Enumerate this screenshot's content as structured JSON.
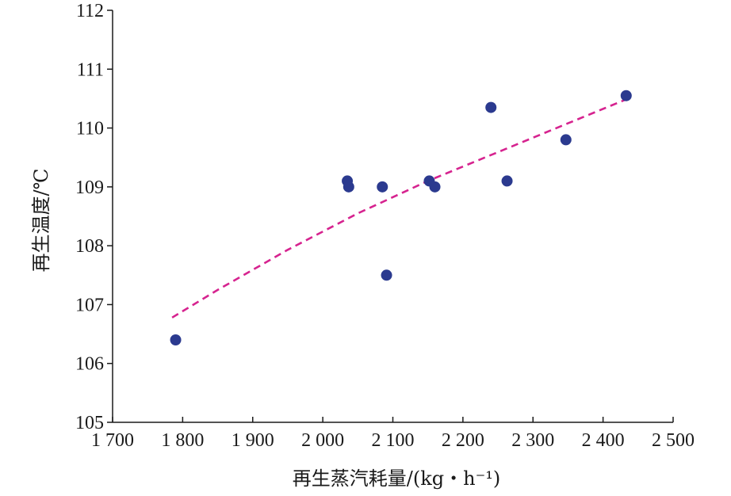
{
  "chart_data": {
    "type": "scatter",
    "xlabel": "再生蒸汽耗量/(kg・h⁻¹)",
    "ylabel": "再生温度/℃",
    "xlim": [
      1700,
      2500
    ],
    "ylim": [
      105,
      112
    ],
    "xticks": [
      1700,
      1800,
      1900,
      2000,
      2100,
      2200,
      2300,
      2400,
      2500
    ],
    "xtick_labels": [
      "1 700",
      "1 800",
      "1 900",
      "2 000",
      "2 100",
      "2 200",
      "2 300",
      "2 400",
      "2 500"
    ],
    "yticks": [
      105,
      106,
      107,
      108,
      109,
      110,
      111,
      112
    ],
    "ytick_labels": [
      "105",
      "106",
      "107",
      "108",
      "109",
      "110",
      "111",
      "112"
    ],
    "grid": false,
    "series": [
      {
        "marker": "circle",
        "color": "#2b3a8f",
        "points": [
          {
            "x": 1790,
            "y": 106.4
          },
          {
            "x": 2035,
            "y": 109.1
          },
          {
            "x": 2037,
            "y": 109.0
          },
          {
            "x": 2085,
            "y": 109.0
          },
          {
            "x": 2091,
            "y": 107.5
          },
          {
            "x": 2152,
            "y": 109.1
          },
          {
            "x": 2160,
            "y": 109.0
          },
          {
            "x": 2240,
            "y": 110.35
          },
          {
            "x": 2263,
            "y": 109.1
          },
          {
            "x": 2347,
            "y": 109.8
          },
          {
            "x": 2433,
            "y": 110.55
          }
        ]
      },
      {
        "line_style": "dashed",
        "color": "#d6238f",
        "points": [
          {
            "x": 1785,
            "y": 106.78
          },
          {
            "x": 1850,
            "y": 107.25
          },
          {
            "x": 1950,
            "y": 107.93
          },
          {
            "x": 2050,
            "y": 108.55
          },
          {
            "x": 2150,
            "y": 109.1
          },
          {
            "x": 2250,
            "y": 109.59
          },
          {
            "x": 2350,
            "y": 110.08
          },
          {
            "x": 2440,
            "y": 110.52
          }
        ]
      }
    ]
  }
}
